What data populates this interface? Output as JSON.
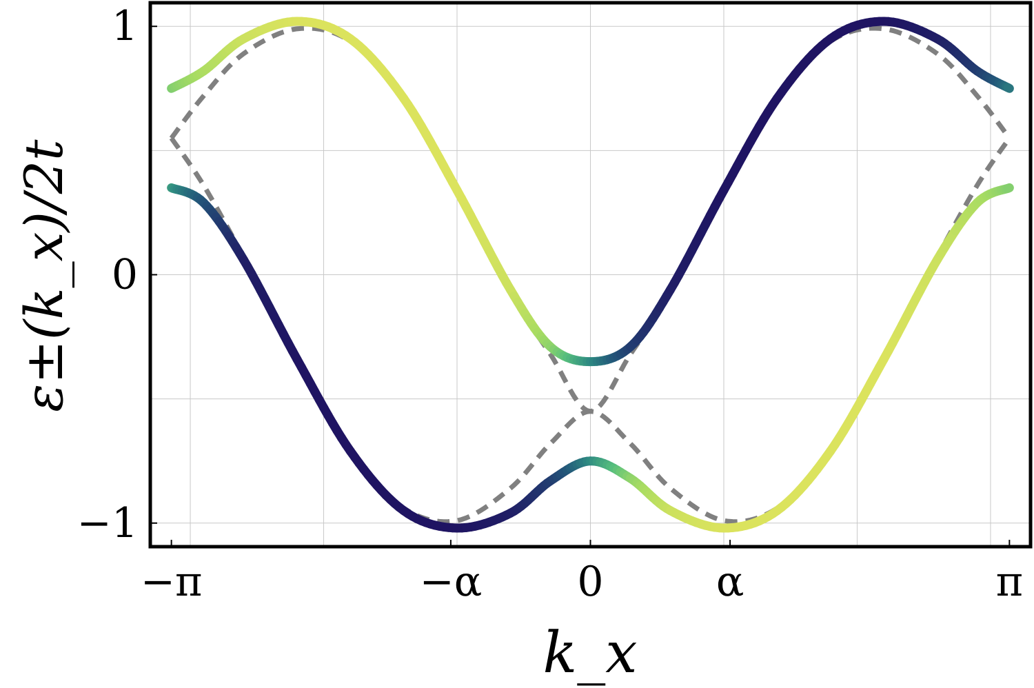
{
  "chart_data": {
    "type": "line",
    "xlabel": "k_x",
    "ylabel": "ε±(k_x)/2t",
    "x_ticks": [
      {
        "value": -3.14159,
        "label": "−π"
      },
      {
        "value": -1.047,
        "label": "−α"
      },
      {
        "value": 0,
        "label": "0"
      },
      {
        "value": 1.047,
        "label": "α"
      },
      {
        "value": 3.14159,
        "label": "π"
      }
    ],
    "y_ticks": [
      {
        "value": -1,
        "label": "−1"
      },
      {
        "value": 0,
        "label": "0"
      },
      {
        "value": 1,
        "label": "1"
      }
    ],
    "x_grid": [
      -3.0,
      -2.0,
      -1.0,
      0.0,
      1.0,
      2.0,
      3.0
    ],
    "y_grid": [
      -1.0,
      -0.5,
      0.0,
      0.5,
      1.0
    ],
    "xlim": [
      -3.3,
      3.3
    ],
    "ylim": [
      -1.095,
      1.095
    ],
    "grid": true,
    "colormap": [
      "#1f1462",
      "#21356e",
      "#23597a",
      "#2f8b82",
      "#57bf7d",
      "#a8dc62",
      "#dbe35d"
    ],
    "series": [
      {
        "style": "solid-colormap",
        "x": [
          -3.14159,
          -2.9,
          -2.6,
          -2.2,
          -1.8,
          -1.4,
          -1.0,
          -0.6,
          -0.3,
          0.0,
          0.3,
          0.6,
          1.0,
          1.4,
          1.8,
          2.2,
          2.6,
          2.9,
          3.14159
        ],
        "y": [
          0.35,
          0.29,
          0.06,
          -0.34,
          -0.71,
          -0.95,
          -1.02,
          -0.96,
          -0.83,
          -0.75,
          -0.82,
          -0.95,
          -1.02,
          -0.95,
          -0.71,
          -0.34,
          0.06,
          0.29,
          0.35
        ],
        "c": [
          0.55,
          0.3,
          0.05,
          0.0,
          0.0,
          0.0,
          0.0,
          0.05,
          0.2,
          0.5,
          0.78,
          0.95,
          1.0,
          1.0,
          1.0,
          1.0,
          0.95,
          0.85,
          0.75
        ]
      },
      {
        "style": "solid-colormap",
        "x": [
          -3.14159,
          -2.9,
          -2.6,
          -2.2,
          -1.8,
          -1.4,
          -1.0,
          -0.6,
          -0.3,
          0.0,
          0.3,
          0.6,
          1.0,
          1.4,
          1.8,
          2.2,
          2.6,
          2.9,
          3.14159
        ],
        "y": [
          0.75,
          0.82,
          0.95,
          1.02,
          0.95,
          0.71,
          0.34,
          -0.06,
          -0.29,
          -0.35,
          -0.29,
          -0.06,
          0.34,
          0.71,
          0.95,
          1.02,
          0.95,
          0.82,
          0.75
        ],
        "c": [
          0.75,
          0.85,
          0.95,
          1.0,
          1.0,
          1.0,
          1.0,
          0.95,
          0.78,
          0.5,
          0.2,
          0.05,
          0.0,
          0.0,
          0.0,
          0.0,
          0.05,
          0.2,
          0.45
        ]
      },
      {
        "style": "dashed-gray",
        "x": [
          -3.14159,
          -2.9,
          -2.6,
          -2.2,
          -1.8,
          -1.4,
          -1.0,
          -0.6,
          -0.3,
          0.0,
          0.3,
          0.6,
          1.0,
          1.4,
          1.8,
          2.2,
          2.6,
          2.9,
          3.14159
        ],
        "y": [
          0.55,
          0.36,
          0.07,
          -0.34,
          -0.71,
          -0.94,
          -0.99,
          -0.86,
          -0.68,
          -0.55,
          -0.68,
          -0.86,
          -0.99,
          -0.94,
          -0.71,
          -0.34,
          0.07,
          0.36,
          0.55
        ]
      },
      {
        "style": "dashed-gray",
        "x": [
          -3.14159,
          -2.9,
          -2.6,
          -2.2,
          -1.8,
          -1.4,
          -1.0,
          -0.6,
          -0.3,
          0.0,
          0.3,
          0.6,
          1.0,
          1.4,
          1.8,
          2.2,
          2.6,
          2.9,
          3.14159
        ],
        "y": [
          0.55,
          0.72,
          0.89,
          0.99,
          0.94,
          0.71,
          0.34,
          -0.07,
          -0.32,
          -0.55,
          -0.32,
          -0.07,
          0.34,
          0.71,
          0.94,
          0.99,
          0.89,
          0.72,
          0.55
        ]
      }
    ]
  }
}
